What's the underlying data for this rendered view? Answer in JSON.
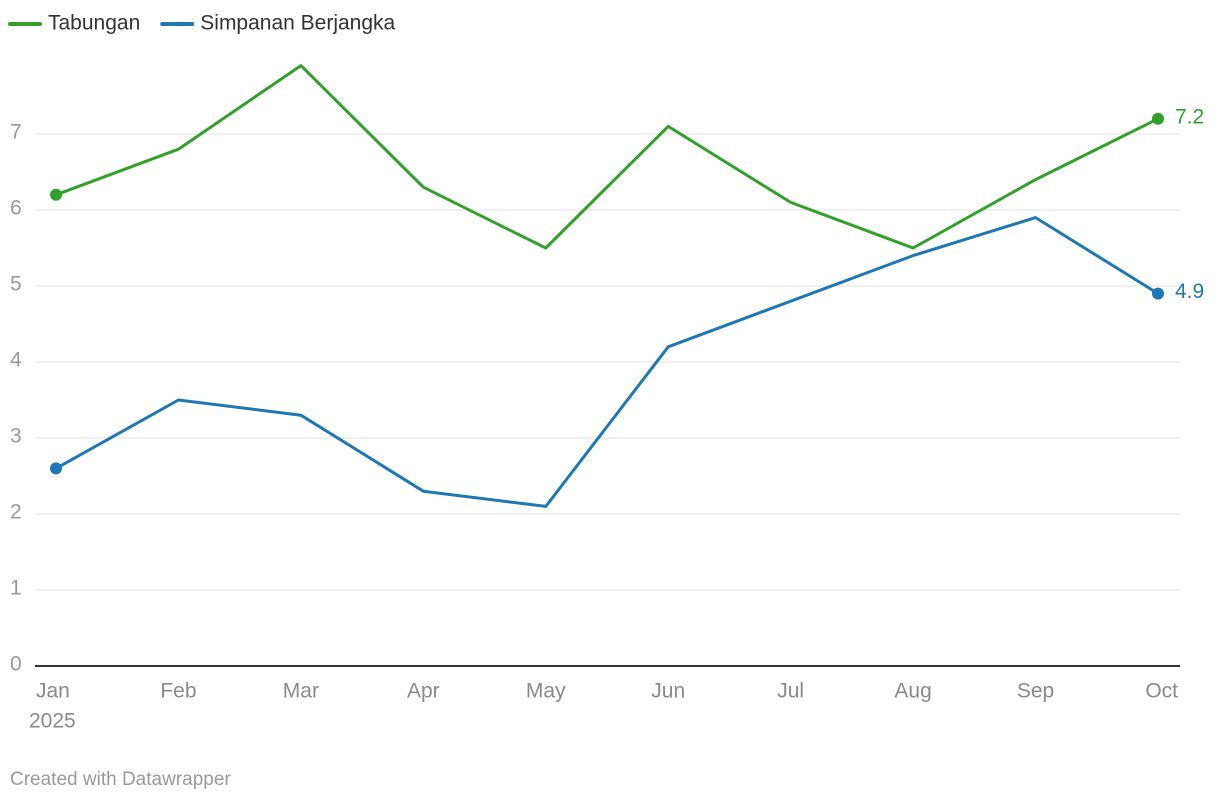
{
  "chart_data": {
    "type": "line",
    "categories": [
      "Jan",
      "Feb",
      "Mar",
      "Apr",
      "May",
      "Jun",
      "Jul",
      "Aug",
      "Sep",
      "Oct"
    ],
    "x_sublabel": "2025",
    "series": [
      {
        "name": "Tabungan",
        "color": "#33a02c",
        "values": [
          6.2,
          6.8,
          7.9,
          6.3,
          5.5,
          7.1,
          6.1,
          5.5,
          6.4,
          7.2
        ]
      },
      {
        "name": "Simpanan Berjangka",
        "color": "#1f78b4",
        "values": [
          2.6,
          3.5,
          3.3,
          2.3,
          2.1,
          4.2,
          4.8,
          5.4,
          5.9,
          4.9
        ]
      }
    ],
    "ylim": [
      0,
      8
    ],
    "yticks": [
      0,
      1,
      2,
      3,
      4,
      5,
      6,
      7
    ],
    "grid": true,
    "footer": "Created with Datawrapper"
  }
}
